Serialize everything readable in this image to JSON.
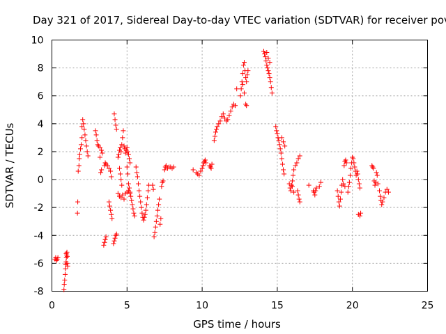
{
  "chart_data": {
    "type": "scatter",
    "title": "Day 321 of 2017, Sidereal Day-to-day VTEC variation (SDTVAR) for receiver pove",
    "xlabel": "GPS time / hours",
    "ylabel": "SDTVAR / TECUs",
    "xlim": [
      0,
      25
    ],
    "ylim": [
      -8,
      10
    ],
    "xticks": [
      0,
      5,
      10,
      15,
      20,
      25
    ],
    "yticks": [
      -8,
      -6,
      -4,
      -2,
      0,
      2,
      4,
      6,
      8,
      10
    ],
    "grid": true,
    "marker": "+",
    "color": "#ff0000",
    "series": [
      {
        "name": "SDTVAR",
        "points": [
          [
            0.2,
            -5.7
          ],
          [
            0.25,
            -5.6
          ],
          [
            0.3,
            -5.8
          ],
          [
            0.35,
            -5.7
          ],
          [
            0.4,
            -5.6
          ],
          [
            0.8,
            -7.9
          ],
          [
            0.82,
            -7.5
          ],
          [
            0.85,
            -7.2
          ],
          [
            0.88,
            -6.8
          ],
          [
            0.9,
            -6.4
          ],
          [
            0.92,
            -6.1
          ],
          [
            0.94,
            -5.9
          ],
          [
            0.96,
            -5.6
          ],
          [
            0.98,
            -5.4
          ],
          [
            1.0,
            -5.2
          ],
          [
            1.02,
            -5.5
          ],
          [
            1.05,
            -6.2
          ],
          [
            1.0,
            -6.0
          ],
          [
            0.95,
            -5.3
          ],
          [
            1.7,
            -2.4
          ],
          [
            1.72,
            -1.6
          ],
          [
            1.75,
            0.6
          ],
          [
            1.8,
            1.0
          ],
          [
            1.82,
            1.5
          ],
          [
            1.85,
            1.8
          ],
          [
            1.9,
            2.2
          ],
          [
            1.95,
            2.5
          ],
          [
            2.0,
            3.0
          ],
          [
            2.0,
            3.8
          ],
          [
            2.05,
            4.3
          ],
          [
            2.1,
            4.0
          ],
          [
            2.15,
            3.6
          ],
          [
            2.2,
            3.2
          ],
          [
            2.25,
            2.8
          ],
          [
            2.3,
            2.4
          ],
          [
            2.35,
            2.0
          ],
          [
            2.4,
            1.7
          ],
          [
            2.9,
            3.5
          ],
          [
            2.95,
            3.2
          ],
          [
            3.0,
            2.8
          ],
          [
            3.05,
            2.5
          ],
          [
            3.1,
            2.4
          ],
          [
            3.2,
            2.3
          ],
          [
            3.3,
            2.1
          ],
          [
            3.35,
            1.9
          ],
          [
            3.2,
            1.6
          ],
          [
            3.25,
            0.5
          ],
          [
            3.3,
            0.7
          ],
          [
            3.45,
            -4.7
          ],
          [
            3.5,
            -4.5
          ],
          [
            3.55,
            -4.3
          ],
          [
            3.6,
            -4.1
          ],
          [
            3.5,
            1.0
          ],
          [
            3.55,
            1.2
          ],
          [
            3.6,
            1.1
          ],
          [
            3.7,
            1.0
          ],
          [
            3.8,
            0.8
          ],
          [
            3.9,
            0.6
          ],
          [
            3.95,
            0.2
          ],
          [
            3.8,
            -1.6
          ],
          [
            3.85,
            -1.9
          ],
          [
            3.9,
            -2.2
          ],
          [
            3.95,
            -2.5
          ],
          [
            4.0,
            -2.8
          ],
          [
            4.1,
            -4.6
          ],
          [
            4.15,
            -4.4
          ],
          [
            4.2,
            -4.2
          ],
          [
            4.25,
            -4.0
          ],
          [
            4.3,
            -3.9
          ],
          [
            4.15,
            4.7
          ],
          [
            4.2,
            4.3
          ],
          [
            4.25,
            3.9
          ],
          [
            4.3,
            3.6
          ],
          [
            4.4,
            -1.0
          ],
          [
            4.5,
            -1.2
          ],
          [
            4.6,
            -1.3
          ],
          [
            4.7,
            -1.1
          ],
          [
            4.8,
            -1.4
          ],
          [
            4.9,
            -1.0
          ],
          [
            5.0,
            -0.9
          ],
          [
            5.1,
            -0.8
          ],
          [
            5.2,
            -1.0
          ],
          [
            4.4,
            1.6
          ],
          [
            4.45,
            1.8
          ],
          [
            4.5,
            2.1
          ],
          [
            4.55,
            2.3
          ],
          [
            4.6,
            2.0
          ],
          [
            4.65,
            2.5
          ],
          [
            4.7,
            3.0
          ],
          [
            4.75,
            3.5
          ],
          [
            4.8,
            2.4
          ],
          [
            4.85,
            2.2
          ],
          [
            4.9,
            1.9
          ],
          [
            4.95,
            2.1
          ],
          [
            5.0,
            2.3
          ],
          [
            5.05,
            2.0
          ],
          [
            5.1,
            1.8
          ],
          [
            5.15,
            1.5
          ],
          [
            5.2,
            1.2
          ],
          [
            4.5,
            0.8
          ],
          [
            4.55,
            0.4
          ],
          [
            4.6,
            0.0
          ],
          [
            4.65,
            -0.4
          ],
          [
            5.0,
            0.9
          ],
          [
            5.05,
            0.4
          ],
          [
            5.1,
            -0.3
          ],
          [
            5.15,
            -0.6
          ],
          [
            5.2,
            -0.9
          ],
          [
            5.25,
            -1.2
          ],
          [
            5.3,
            -1.5
          ],
          [
            5.35,
            -1.8
          ],
          [
            5.4,
            -2.1
          ],
          [
            5.45,
            -2.4
          ],
          [
            5.5,
            -2.6
          ],
          [
            5.6,
            0.9
          ],
          [
            5.65,
            0.5
          ],
          [
            5.7,
            0.2
          ],
          [
            5.75,
            -0.3
          ],
          [
            5.8,
            -0.8
          ],
          [
            5.85,
            -1.2
          ],
          [
            5.9,
            -1.6
          ],
          [
            5.95,
            -2.0
          ],
          [
            6.0,
            -2.4
          ],
          [
            6.05,
            -2.7
          ],
          [
            6.1,
            -2.9
          ],
          [
            6.15,
            -2.7
          ],
          [
            6.2,
            -2.5
          ],
          [
            6.25,
            -2.2
          ],
          [
            6.3,
            -1.8
          ],
          [
            6.35,
            -1.3
          ],
          [
            6.4,
            -0.8
          ],
          [
            6.45,
            -0.4
          ],
          [
            6.8,
            -4.1
          ],
          [
            6.85,
            -3.8
          ],
          [
            6.9,
            -3.4
          ],
          [
            6.95,
            -3.0
          ],
          [
            7.0,
            -2.6
          ],
          [
            7.05,
            -2.2
          ],
          [
            7.1,
            -1.8
          ],
          [
            7.15,
            -1.4
          ],
          [
            7.2,
            -3.2
          ],
          [
            7.25,
            -2.8
          ],
          [
            7.3,
            -0.5
          ],
          [
            7.35,
            -0.2
          ],
          [
            7.4,
            -0.1
          ],
          [
            6.7,
            -0.4
          ],
          [
            6.75,
            -0.7
          ],
          [
            7.5,
            0.7
          ],
          [
            7.55,
            0.9
          ],
          [
            7.6,
            1.0
          ],
          [
            7.7,
            0.8
          ],
          [
            7.8,
            0.9
          ],
          [
            7.9,
            0.9
          ],
          [
            8.0,
            0.8
          ],
          [
            8.1,
            0.9
          ],
          [
            9.4,
            0.7
          ],
          [
            9.6,
            0.5
          ],
          [
            9.7,
            0.4
          ],
          [
            9.8,
            0.3
          ],
          [
            9.9,
            0.6
          ],
          [
            10.0,
            0.8
          ],
          [
            10.05,
            1.0
          ],
          [
            10.1,
            1.2
          ],
          [
            10.15,
            1.3
          ],
          [
            10.2,
            1.4
          ],
          [
            10.25,
            1.2
          ],
          [
            10.5,
            1.0
          ],
          [
            10.55,
            0.9
          ],
          [
            10.6,
            0.8
          ],
          [
            10.65,
            1.1
          ],
          [
            10.8,
            2.8
          ],
          [
            10.85,
            3.1
          ],
          [
            10.9,
            3.4
          ],
          [
            10.95,
            3.6
          ],
          [
            11.0,
            3.8
          ],
          [
            11.1,
            4.0
          ],
          [
            11.2,
            4.2
          ],
          [
            11.3,
            4.5
          ],
          [
            11.4,
            4.7
          ],
          [
            11.5,
            4.4
          ],
          [
            11.6,
            4.2
          ],
          [
            11.7,
            4.3
          ],
          [
            11.8,
            4.6
          ],
          [
            11.9,
            4.9
          ],
          [
            12.0,
            5.2
          ],
          [
            12.1,
            5.4
          ],
          [
            12.2,
            5.3
          ],
          [
            12.3,
            6.5
          ],
          [
            12.55,
            6.0
          ],
          [
            12.6,
            6.5
          ],
          [
            12.65,
            7.0
          ],
          [
            12.7,
            7.6
          ],
          [
            12.75,
            8.2
          ],
          [
            12.8,
            8.4
          ],
          [
            12.85,
            7.8
          ],
          [
            12.9,
            7.3
          ],
          [
            12.95,
            7.0
          ],
          [
            13.0,
            7.5
          ],
          [
            13.05,
            7.8
          ],
          [
            12.9,
            5.4
          ],
          [
            12.95,
            5.3
          ],
          [
            12.7,
            6.8
          ],
          [
            12.8,
            6.2
          ],
          [
            14.1,
            9.2
          ],
          [
            14.15,
            9.0
          ],
          [
            14.2,
            8.8
          ],
          [
            14.25,
            8.5
          ],
          [
            14.3,
            8.2
          ],
          [
            14.35,
            8.0
          ],
          [
            14.4,
            7.8
          ],
          [
            14.45,
            7.6
          ],
          [
            14.5,
            7.3
          ],
          [
            14.55,
            7.0
          ],
          [
            14.6,
            6.6
          ],
          [
            14.65,
            6.2
          ],
          [
            14.3,
            9.1
          ],
          [
            14.4,
            8.7
          ],
          [
            14.5,
            8.4
          ],
          [
            14.9,
            3.8
          ],
          [
            14.95,
            3.5
          ],
          [
            15.0,
            3.3
          ],
          [
            15.05,
            3.0
          ],
          [
            15.1,
            2.8
          ],
          [
            15.15,
            2.5
          ],
          [
            15.2,
            2.2
          ],
          [
            15.25,
            1.9
          ],
          [
            15.3,
            1.5
          ],
          [
            15.35,
            1.1
          ],
          [
            15.4,
            0.7
          ],
          [
            15.45,
            0.4
          ],
          [
            15.3,
            3.0
          ],
          [
            15.4,
            2.7
          ],
          [
            15.5,
            2.4
          ],
          [
            15.8,
            -0.3
          ],
          [
            15.85,
            -0.6
          ],
          [
            15.9,
            -0.8
          ],
          [
            15.95,
            -0.4
          ],
          [
            16.0,
            -0.1
          ],
          [
            16.05,
            0.3
          ],
          [
            16.1,
            0.7
          ],
          [
            16.2,
            1.0
          ],
          [
            16.3,
            1.2
          ],
          [
            16.4,
            1.5
          ],
          [
            16.5,
            1.7
          ],
          [
            16.35,
            -0.8
          ],
          [
            16.4,
            -1.1
          ],
          [
            16.45,
            -1.4
          ],
          [
            16.5,
            -1.6
          ],
          [
            16.0,
            -0.5
          ],
          [
            16.1,
            -0.9
          ],
          [
            17.1,
            -0.4
          ],
          [
            17.4,
            -0.8
          ],
          [
            17.45,
            -0.9
          ],
          [
            17.5,
            -1.1
          ],
          [
            17.55,
            -0.8
          ],
          [
            17.6,
            -0.6
          ],
          [
            17.8,
            -0.5
          ],
          [
            17.9,
            -0.2
          ],
          [
            19.0,
            -0.8
          ],
          [
            19.05,
            -1.2
          ],
          [
            19.1,
            -1.6
          ],
          [
            19.15,
            -1.9
          ],
          [
            19.2,
            -1.4
          ],
          [
            19.25,
            -0.9
          ],
          [
            19.3,
            -0.4
          ],
          [
            19.35,
            0.0
          ],
          [
            19.4,
            -0.3
          ],
          [
            19.5,
            -0.5
          ],
          [
            19.45,
            1.0
          ],
          [
            19.5,
            1.3
          ],
          [
            19.55,
            1.4
          ],
          [
            19.6,
            1.2
          ],
          [
            19.7,
            -0.9
          ],
          [
            19.75,
            -0.5
          ],
          [
            19.8,
            -0.2
          ],
          [
            19.85,
            0.3
          ],
          [
            19.9,
            0.8
          ],
          [
            19.95,
            1.2
          ],
          [
            20.0,
            1.6
          ],
          [
            20.05,
            1.5
          ],
          [
            20.1,
            1.2
          ],
          [
            20.15,
            0.9
          ],
          [
            20.2,
            0.6
          ],
          [
            20.25,
            0.3
          ],
          [
            20.3,
            0.6
          ],
          [
            20.35,
            0.4
          ],
          [
            20.4,
            0.0
          ],
          [
            20.45,
            -0.3
          ],
          [
            20.5,
            -0.6
          ],
          [
            20.4,
            -2.5
          ],
          [
            20.5,
            -2.6
          ],
          [
            20.55,
            -2.4
          ],
          [
            21.3,
            1.0
          ],
          [
            21.35,
            0.9
          ],
          [
            21.4,
            0.8
          ],
          [
            21.45,
            -0.1
          ],
          [
            21.5,
            -0.4
          ],
          [
            21.55,
            -0.2
          ],
          [
            21.6,
            0.5
          ],
          [
            21.65,
            0.3
          ],
          [
            21.7,
            -0.3
          ],
          [
            21.8,
            -0.8
          ],
          [
            21.85,
            -1.2
          ],
          [
            21.9,
            -1.5
          ],
          [
            21.95,
            -1.8
          ],
          [
            22.0,
            -1.6
          ],
          [
            22.1,
            -1.3
          ],
          [
            22.2,
            -0.9
          ],
          [
            22.3,
            -0.7
          ],
          [
            22.4,
            -0.9
          ]
        ]
      }
    ]
  }
}
